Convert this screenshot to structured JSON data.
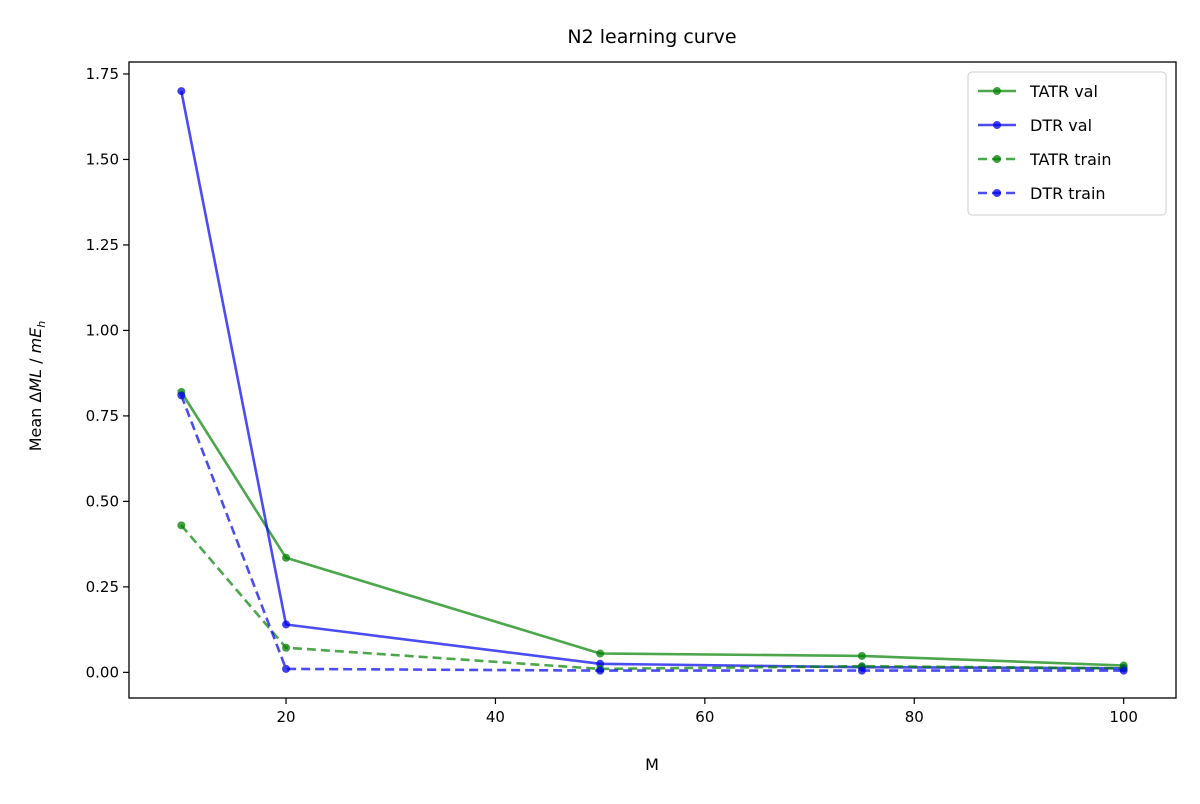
{
  "chart_data": {
    "type": "line",
    "title": "N2 learning curve",
    "xlabel": "M",
    "ylabel": {
      "prefix": "Mean ",
      "delta": "Δ",
      "quantity": "ML",
      "separator": " / ",
      "unit_m": "mE",
      "unit_sub": "h"
    },
    "xlim": [
      5,
      105
    ],
    "ylim": [
      -0.075,
      1.785
    ],
    "xticks": [
      20,
      40,
      60,
      80,
      100
    ],
    "xtick_labels": [
      "20",
      "40",
      "60",
      "80",
      "100"
    ],
    "yticks": [
      0.0,
      0.25,
      0.5,
      0.75,
      1.0,
      1.25,
      1.5,
      1.75
    ],
    "ytick_labels": [
      "0.00",
      "0.25",
      "0.50",
      "0.75",
      "1.00",
      "1.25",
      "1.50",
      "1.75"
    ],
    "grid": false,
    "legend": "top-right",
    "x": [
      10,
      20,
      50,
      75,
      100
    ],
    "series": [
      {
        "name": "TATR val",
        "color": "#008000",
        "style": "solid",
        "values": [
          0.82,
          0.335,
          0.055,
          0.048,
          0.02
        ]
      },
      {
        "name": "DTR val",
        "color": "#0000ee",
        "style": "solid",
        "values": [
          1.7,
          0.14,
          0.025,
          0.015,
          0.012
        ]
      },
      {
        "name": "TATR train",
        "color": "#008000",
        "style": "dashed",
        "values": [
          0.43,
          0.072,
          0.01,
          0.018,
          0.012
        ]
      },
      {
        "name": "DTR train",
        "color": "#0000ee",
        "style": "dashed",
        "values": [
          0.81,
          0.01,
          0.005,
          0.005,
          0.005
        ]
      }
    ]
  }
}
